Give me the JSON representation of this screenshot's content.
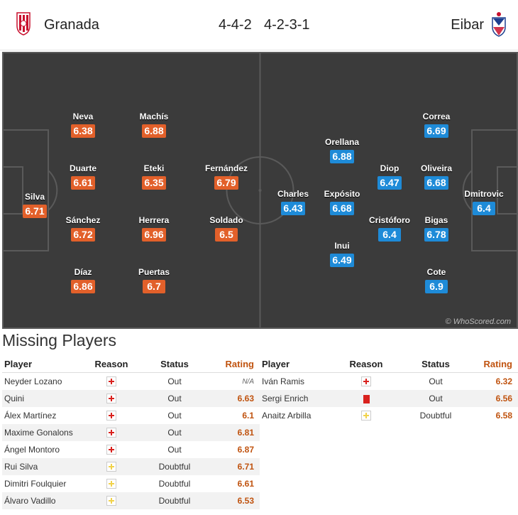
{
  "header": {
    "home_team": "Granada",
    "away_team": "Eibar",
    "home_formation": "4-4-2",
    "away_formation": "4-2-3-1"
  },
  "pitch": {
    "watermark": "© WhoScored.com",
    "home_color": "#e2602a",
    "away_color": "#1e8bd8",
    "home_players": [
      {
        "name": "Silva",
        "rating": "6.71"
      },
      {
        "name": "Neva",
        "rating": "6.38"
      },
      {
        "name": "Duarte",
        "rating": "6.61"
      },
      {
        "name": "Sánchez",
        "rating": "6.72"
      },
      {
        "name": "Díaz",
        "rating": "6.86"
      },
      {
        "name": "Machís",
        "rating": "6.88"
      },
      {
        "name": "Eteki",
        "rating": "6.35"
      },
      {
        "name": "Herrera",
        "rating": "6.96"
      },
      {
        "name": "Puertas",
        "rating": "6.7"
      },
      {
        "name": "Fernández",
        "rating": "6.79"
      },
      {
        "name": "Soldado",
        "rating": "6.5"
      }
    ],
    "away_players": [
      {
        "name": "Dmitrovic",
        "rating": "6.4"
      },
      {
        "name": "Correa",
        "rating": "6.69"
      },
      {
        "name": "Oliveira",
        "rating": "6.68"
      },
      {
        "name": "Bigas",
        "rating": "6.78"
      },
      {
        "name": "Cote",
        "rating": "6.9"
      },
      {
        "name": "Diop",
        "rating": "6.47"
      },
      {
        "name": "Cristóforo",
        "rating": "6.4"
      },
      {
        "name": "Orellana",
        "rating": "6.88"
      },
      {
        "name": "Expósito",
        "rating": "6.68"
      },
      {
        "name": "Inui",
        "rating": "6.49"
      },
      {
        "name": "Charles",
        "rating": "6.43"
      }
    ]
  },
  "missing": {
    "title": "Missing Players",
    "columns": {
      "player": "Player",
      "reason": "Reason",
      "status": "Status",
      "rating": "Rating"
    },
    "home": [
      {
        "player": "Neyder Lozano",
        "reason": "injury",
        "status": "Out",
        "rating": "N/A"
      },
      {
        "player": "Quini",
        "reason": "injury",
        "status": "Out",
        "rating": "6.63"
      },
      {
        "player": "Álex Martínez",
        "reason": "injury",
        "status": "Out",
        "rating": "6.1"
      },
      {
        "player": "Maxime Gonalons",
        "reason": "injury",
        "status": "Out",
        "rating": "6.81"
      },
      {
        "player": "Ángel Montoro",
        "reason": "injury",
        "status": "Out",
        "rating": "6.87"
      },
      {
        "player": "Rui Silva",
        "reason": "doubtful",
        "status": "Doubtful",
        "rating": "6.71"
      },
      {
        "player": "Dimitri Foulquier",
        "reason": "doubtful",
        "status": "Doubtful",
        "rating": "6.61"
      },
      {
        "player": "Álvaro Vadillo",
        "reason": "doubtful",
        "status": "Doubtful",
        "rating": "6.53"
      }
    ],
    "away": [
      {
        "player": "Iván Ramis",
        "reason": "injury",
        "status": "Out",
        "rating": "6.32"
      },
      {
        "player": "Sergi Enrich",
        "reason": "red-card",
        "status": "Out",
        "rating": "6.56"
      },
      {
        "player": "Anaitz Arbilla",
        "reason": "doubtful",
        "status": "Doubtful",
        "rating": "6.58"
      }
    ]
  }
}
